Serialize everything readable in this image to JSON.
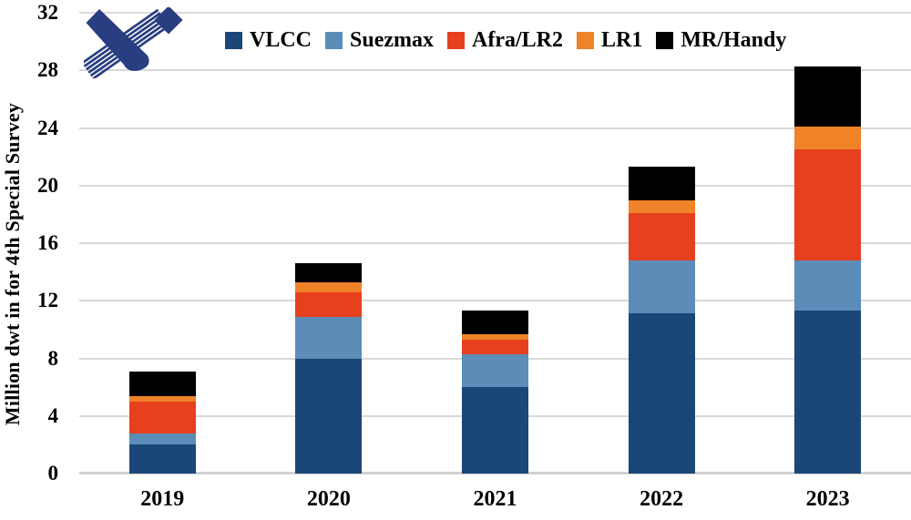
{
  "logo": {
    "name": "crossed-ribbons-x-logo",
    "color": "#293E80"
  },
  "colors": {
    "gridline": "#D9D9D9",
    "axis_line": "#D2D2D2",
    "background": "#FFFFFF",
    "text": "#000000"
  },
  "chart_data": {
    "type": "bar",
    "stacked": true,
    "title": "",
    "xlabel": "",
    "ylabel": "Million dwt in for 4th Special Survey",
    "categories": [
      "2019",
      "2020",
      "2021",
      "2022",
      "2023"
    ],
    "series": [
      {
        "name": "VLCC",
        "color": "#1B4678",
        "values": [
          2.0,
          8.0,
          6.0,
          11.1,
          11.3
        ]
      },
      {
        "name": "Suezmax",
        "color": "#5B8DB8",
        "values": [
          0.8,
          2.9,
          2.3,
          3.7,
          3.5
        ]
      },
      {
        "name": "Afra/LR2",
        "color": "#E6401F",
        "values": [
          2.2,
          1.7,
          1.0,
          3.3,
          7.7
        ]
      },
      {
        "name": "LR1",
        "color": "#F08228",
        "values": [
          0.4,
          0.7,
          0.4,
          0.9,
          1.6
        ]
      },
      {
        "name": "MR/Handy",
        "color": "#000000",
        "values": [
          1.7,
          1.3,
          1.6,
          2.3,
          4.2
        ]
      }
    ],
    "totals": [
      7.1,
      14.6,
      11.3,
      21.3,
      28.3
    ],
    "ylim": [
      0,
      32
    ],
    "yticks": [
      0,
      4,
      8,
      12,
      16,
      20,
      24,
      28,
      32
    ],
    "grid": true,
    "legend_position": "top"
  }
}
